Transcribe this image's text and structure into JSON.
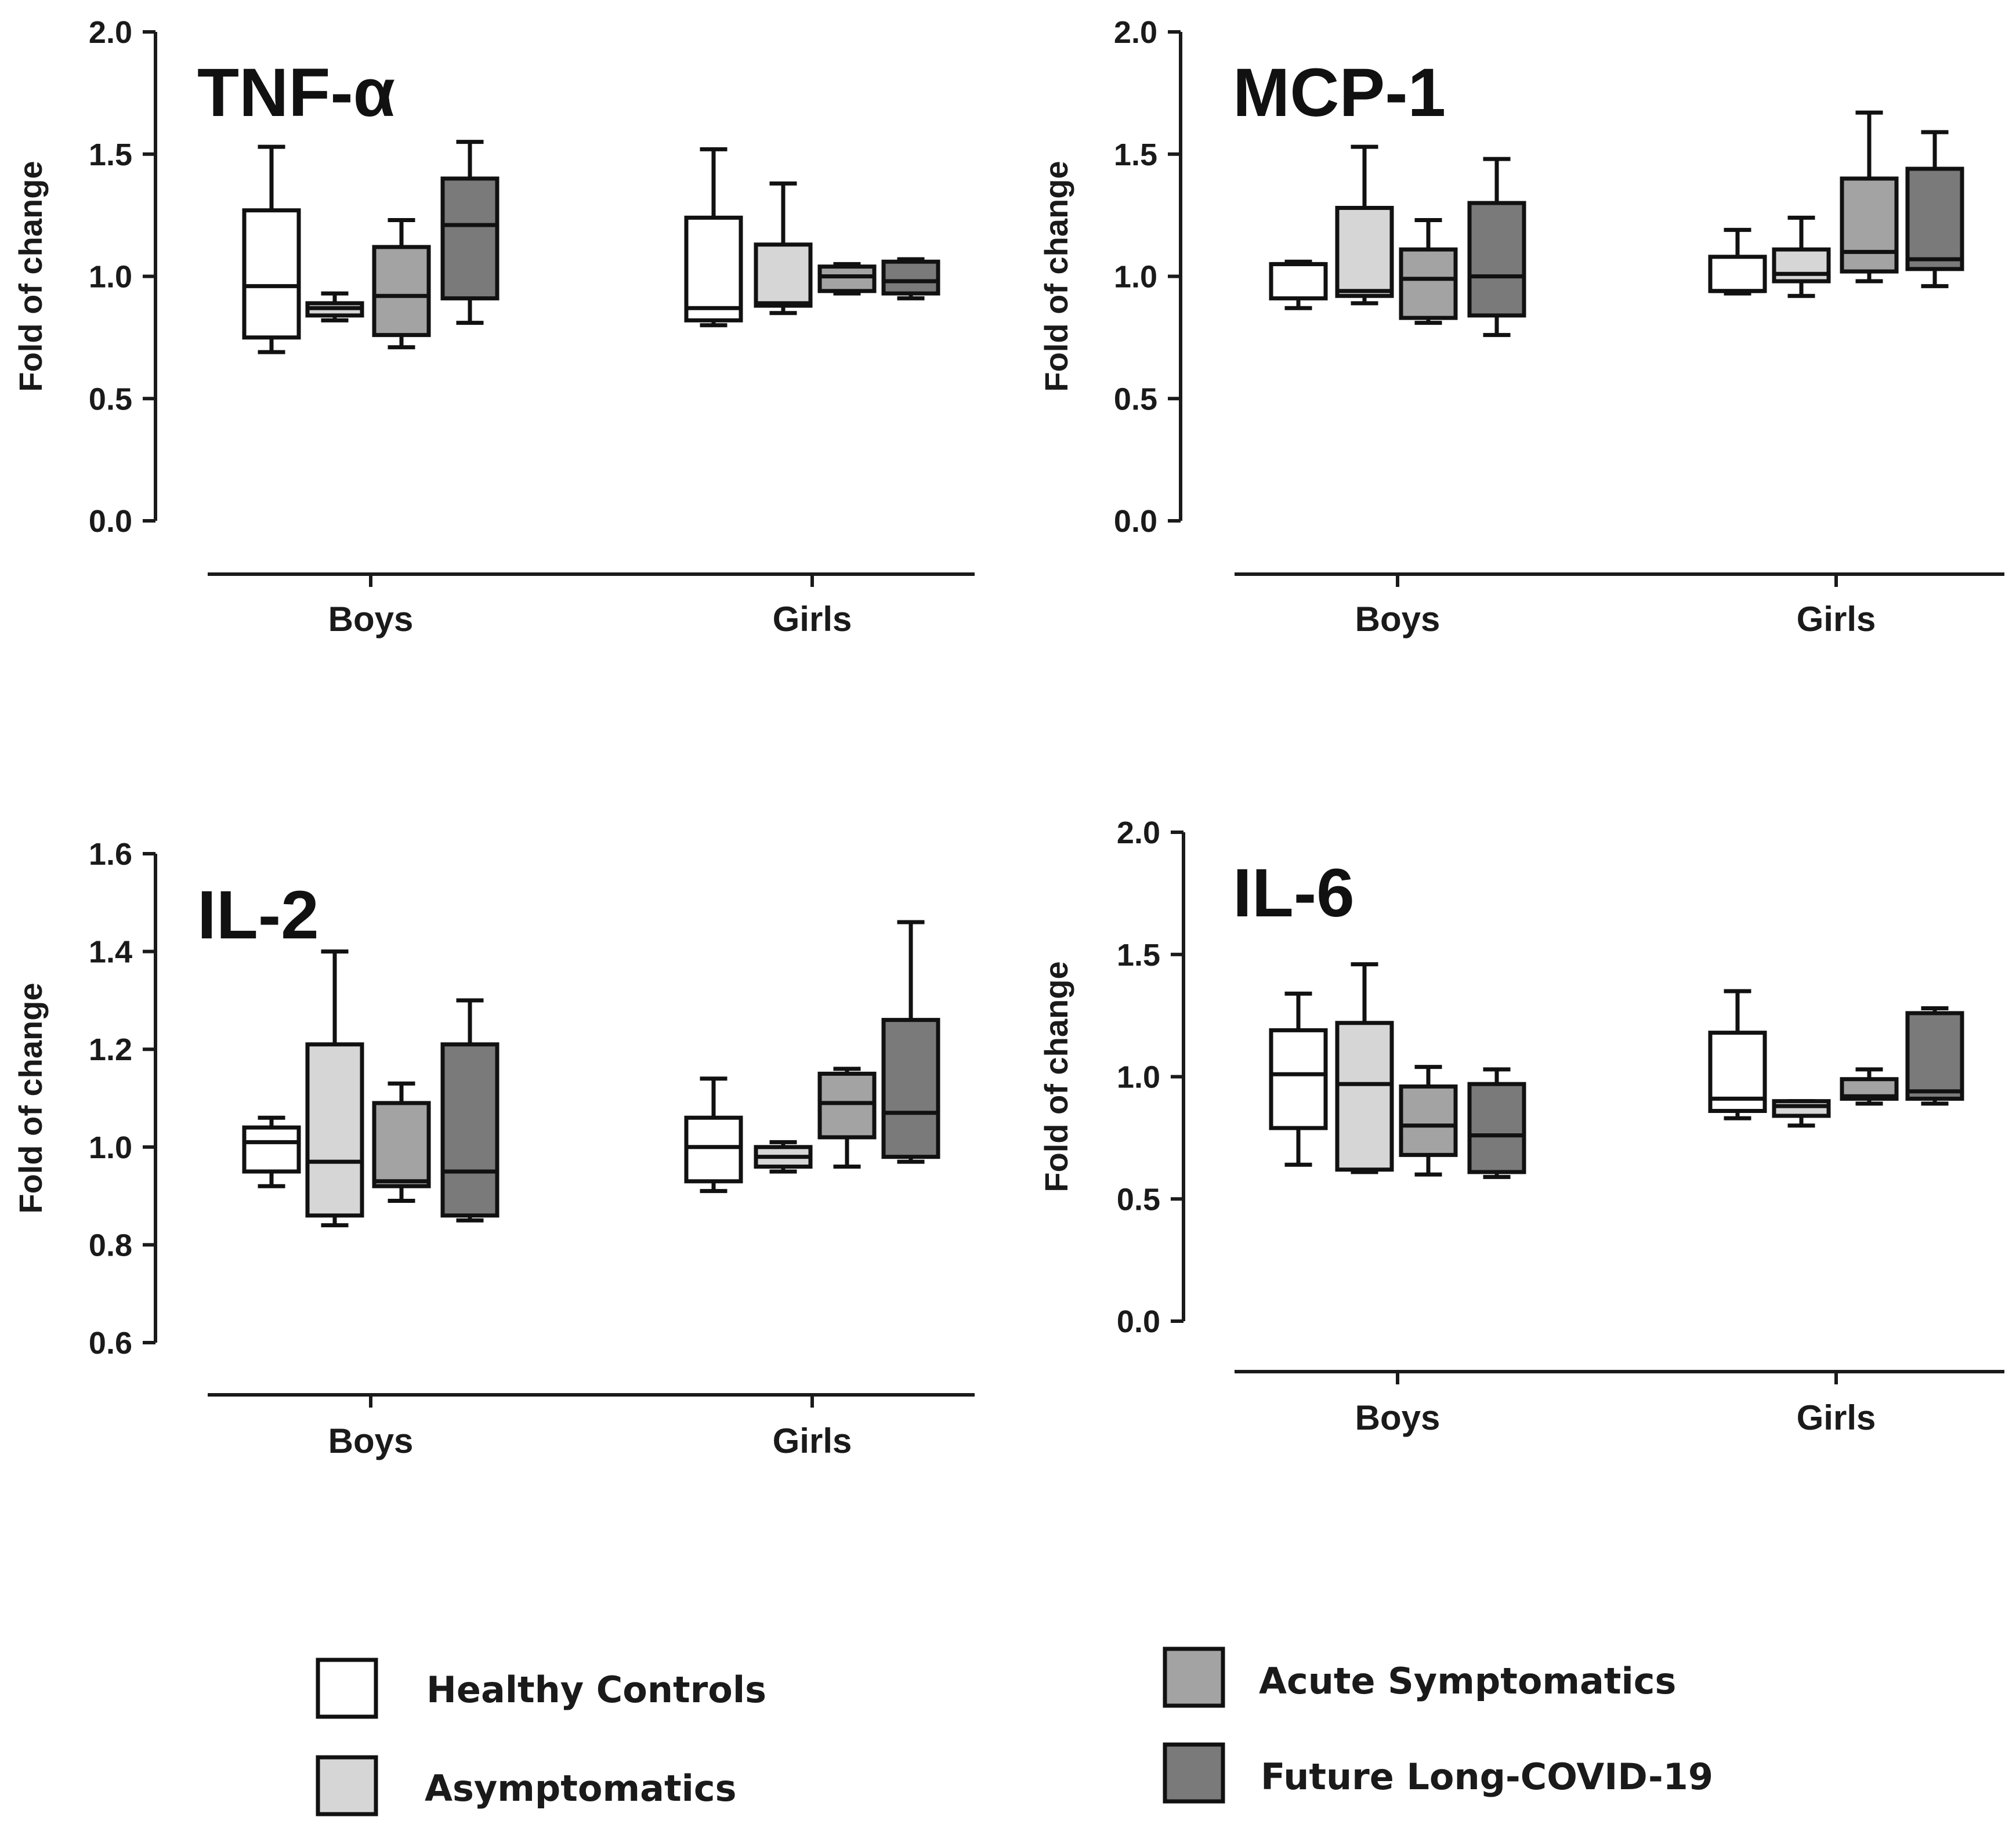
{
  "groups": [
    {
      "name": "Healthy Controls",
      "color": "#ffffff"
    },
    {
      "name": "Asymptomatics",
      "color": "#d6d6d6"
    },
    {
      "name": "Acute Symptomatics",
      "color": "#a3a3a3"
    },
    {
      "name": "Future Long-COVID-19",
      "color": "#7a7a7a"
    }
  ],
  "chart_data": [
    {
      "type": "box",
      "title": "TNF-α",
      "ylabel": "Fold of change",
      "ylim": [
        0.0,
        2.0
      ],
      "yticks": [
        "0.0",
        "0.5",
        "1.0",
        "1.5",
        "2.0"
      ],
      "categories": [
        "Boys",
        "Girls"
      ],
      "boxes": {
        "Boys": [
          {
            "min": 0.69,
            "q1": 0.75,
            "median": 0.96,
            "q3": 1.27,
            "max": 1.53
          },
          {
            "min": 0.82,
            "q1": 0.84,
            "median": 0.87,
            "q3": 0.89,
            "max": 0.93
          },
          {
            "min": 0.71,
            "q1": 0.76,
            "median": 0.92,
            "q3": 1.12,
            "max": 1.23
          },
          {
            "min": 0.81,
            "q1": 0.91,
            "median": 1.21,
            "q3": 1.4,
            "max": 1.55
          }
        ],
        "Girls": [
          {
            "min": 0.8,
            "q1": 0.82,
            "median": 0.87,
            "q3": 1.24,
            "max": 1.52
          },
          {
            "min": 0.85,
            "q1": 0.88,
            "median": 0.89,
            "q3": 1.13,
            "max": 1.38
          },
          {
            "min": 0.93,
            "q1": 0.94,
            "median": 1.0,
            "q3": 1.04,
            "max": 1.05
          },
          {
            "min": 0.91,
            "q1": 0.93,
            "median": 0.98,
            "q3": 1.06,
            "max": 1.07
          }
        ]
      }
    },
    {
      "type": "box",
      "title": "MCP-1",
      "ylabel": "Fold of change",
      "ylim": [
        0.0,
        2.0
      ],
      "yticks": [
        "0.0",
        "0.5",
        "1.0",
        "1.5",
        "2.0"
      ],
      "categories": [
        "Boys",
        "Girls"
      ],
      "boxes": {
        "Boys": [
          {
            "min": 0.87,
            "q1": 0.91,
            "median": 1.05,
            "q3": 1.05,
            "max": 1.06
          },
          {
            "min": 0.89,
            "q1": 0.92,
            "median": 0.94,
            "q3": 1.28,
            "max": 1.53
          },
          {
            "min": 0.81,
            "q1": 0.83,
            "median": 0.99,
            "q3": 1.11,
            "max": 1.23
          },
          {
            "min": 0.76,
            "q1": 0.84,
            "median": 1.0,
            "q3": 1.3,
            "max": 1.48
          }
        ],
        "Girls": [
          {
            "min": 0.93,
            "q1": 0.94,
            "median": 0.94,
            "q3": 1.08,
            "max": 1.19
          },
          {
            "min": 0.92,
            "q1": 0.98,
            "median": 1.01,
            "q3": 1.11,
            "max": 1.24
          },
          {
            "min": 0.98,
            "q1": 1.02,
            "median": 1.1,
            "q3": 1.4,
            "max": 1.67
          },
          {
            "min": 0.96,
            "q1": 1.03,
            "median": 1.07,
            "q3": 1.44,
            "max": 1.59
          }
        ]
      }
    },
    {
      "type": "box",
      "title": "IL-2",
      "ylabel": "Fold of change",
      "ylim": [
        0.6,
        1.6
      ],
      "yticks": [
        "0.6",
        "0.8",
        "1.0",
        "1.2",
        "1.4",
        "1.6"
      ],
      "categories": [
        "Boys",
        "Girls"
      ],
      "boxes": {
        "Boys": [
          {
            "min": 0.92,
            "q1": 0.95,
            "median": 1.01,
            "q3": 1.04,
            "max": 1.06
          },
          {
            "min": 0.84,
            "q1": 0.86,
            "median": 0.97,
            "q3": 1.21,
            "max": 1.4
          },
          {
            "min": 0.89,
            "q1": 0.92,
            "median": 0.93,
            "q3": 1.09,
            "max": 1.13
          },
          {
            "min": 0.85,
            "q1": 0.86,
            "median": 0.95,
            "q3": 1.21,
            "max": 1.3
          }
        ],
        "Girls": [
          {
            "min": 0.91,
            "q1": 0.93,
            "median": 1.0,
            "q3": 1.06,
            "max": 1.14
          },
          {
            "min": 0.95,
            "q1": 0.96,
            "median": 0.98,
            "q3": 1.0,
            "max": 1.01
          },
          {
            "min": 0.96,
            "q1": 1.02,
            "median": 1.09,
            "q3": 1.15,
            "max": 1.16
          },
          {
            "min": 0.97,
            "q1": 0.98,
            "median": 1.07,
            "q3": 1.26,
            "max": 1.46
          }
        ]
      }
    },
    {
      "type": "box",
      "title": "IL-6",
      "ylabel": "Fold of change",
      "ylim": [
        0.0,
        2.0
      ],
      "yticks": [
        "0.0",
        "0.5",
        "1.0",
        "1.5",
        "2.0"
      ],
      "categories": [
        "Boys",
        "Girls"
      ],
      "boxes": {
        "Boys": [
          {
            "min": 0.64,
            "q1": 0.79,
            "median": 1.01,
            "q3": 1.19,
            "max": 1.34
          },
          {
            "min": 0.61,
            "q1": 0.62,
            "median": 0.97,
            "q3": 1.22,
            "max": 1.46
          },
          {
            "min": 0.6,
            "q1": 0.68,
            "median": 0.8,
            "q3": 0.96,
            "max": 1.04
          },
          {
            "min": 0.59,
            "q1": 0.61,
            "median": 0.76,
            "q3": 0.97,
            "max": 1.03
          }
        ],
        "Girls": [
          {
            "min": 0.83,
            "q1": 0.86,
            "median": 0.91,
            "q3": 1.18,
            "max": 1.35
          },
          {
            "min": 0.8,
            "q1": 0.84,
            "median": 0.88,
            "q3": 0.9,
            "max": 0.9
          },
          {
            "min": 0.89,
            "q1": 0.91,
            "median": 0.92,
            "q3": 0.99,
            "max": 1.03
          },
          {
            "min": 0.89,
            "q1": 0.91,
            "median": 0.94,
            "q3": 1.26,
            "max": 1.28
          }
        ]
      }
    }
  ]
}
